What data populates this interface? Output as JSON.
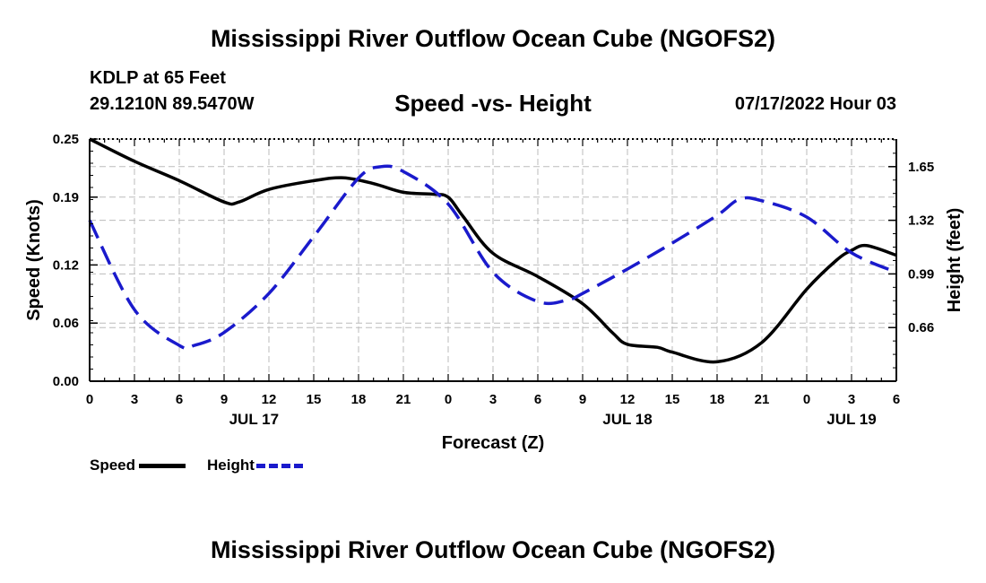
{
  "main_title": "Mississippi River Outflow Ocean Cube (NGOFS2)",
  "bottom_title": "Mississippi River Outflow Ocean Cube (NGOFS2)",
  "station": "KDLP at 65 Feet",
  "coords": "29.1210N  89.5470W",
  "subtitle": "Speed -vs- Height",
  "datetime": "07/17/2022 Hour 03",
  "colors": {
    "speed": "#000000",
    "height": "#1a1acc",
    "grid": "#bbbbbb"
  },
  "legend": {
    "speed": "Speed",
    "height": "Height"
  },
  "chart_data": {
    "type": "line",
    "title": "Speed -vs- Height",
    "xlabel": "Forecast (Z)",
    "ylabel": "Speed (Knots)",
    "y2label": "Height (feet)",
    "x_range_hours": [
      0,
      54
    ],
    "x_tick_hours": [
      0,
      3,
      6,
      9,
      12,
      15,
      18,
      21,
      24,
      27,
      30,
      33,
      36,
      39,
      42,
      45,
      48,
      51,
      54
    ],
    "x_tick_labels": [
      "0",
      "3",
      "6",
      "9",
      "12",
      "15",
      "18",
      "21",
      "0",
      "3",
      "6",
      "9",
      "12",
      "15",
      "18",
      "21",
      "0",
      "3",
      "6"
    ],
    "day_labels": [
      {
        "hour": 11,
        "label": "JUL 17"
      },
      {
        "hour": 36,
        "label": "JUL 18"
      },
      {
        "hour": 51,
        "label": "JUL 19"
      }
    ],
    "ylim": [
      0,
      0.25
    ],
    "y_ticks": [
      0.0,
      0.06,
      0.12,
      0.19,
      0.25
    ],
    "y_tick_labels": [
      "0.00",
      "0.06",
      "0.12",
      "0.19",
      "0.25"
    ],
    "y2lim": [
      0.33,
      1.82
    ],
    "y2_ticks": [
      0.66,
      0.99,
      1.32,
      1.65
    ],
    "y2_tick_labels": [
      "0.66",
      "0.99",
      "1.32",
      "1.65"
    ],
    "grid": true,
    "series": [
      {
        "name": "Speed",
        "axis": "left",
        "style": "solid",
        "x": [
          0,
          3,
          6,
          9,
          10,
          12,
          15,
          17,
          19,
          21,
          23,
          24,
          25,
          27,
          30,
          33,
          35,
          36,
          38,
          39,
          42,
          45,
          48,
          50,
          51,
          52,
          54
        ],
        "y": [
          0.25,
          0.227,
          0.207,
          0.185,
          0.185,
          0.198,
          0.207,
          0.21,
          0.204,
          0.195,
          0.193,
          0.19,
          0.17,
          0.132,
          0.108,
          0.08,
          0.05,
          0.038,
          0.035,
          0.03,
          0.02,
          0.04,
          0.095,
          0.125,
          0.135,
          0.14,
          0.13
        ]
      },
      {
        "name": "Height",
        "axis": "right",
        "style": "dashed",
        "x": [
          0,
          3,
          6,
          7,
          9,
          12,
          15,
          18,
          19.5,
          21,
          24,
          27,
          30,
          32,
          33,
          36,
          39,
          42,
          43.5,
          45,
          48,
          51,
          54
        ],
        "y": [
          1.32,
          0.77,
          0.55,
          0.55,
          0.63,
          0.87,
          1.22,
          1.58,
          1.65,
          1.62,
          1.42,
          1.0,
          0.82,
          0.83,
          0.87,
          1.02,
          1.18,
          1.35,
          1.45,
          1.44,
          1.34,
          1.12,
          1.0
        ]
      }
    ]
  }
}
